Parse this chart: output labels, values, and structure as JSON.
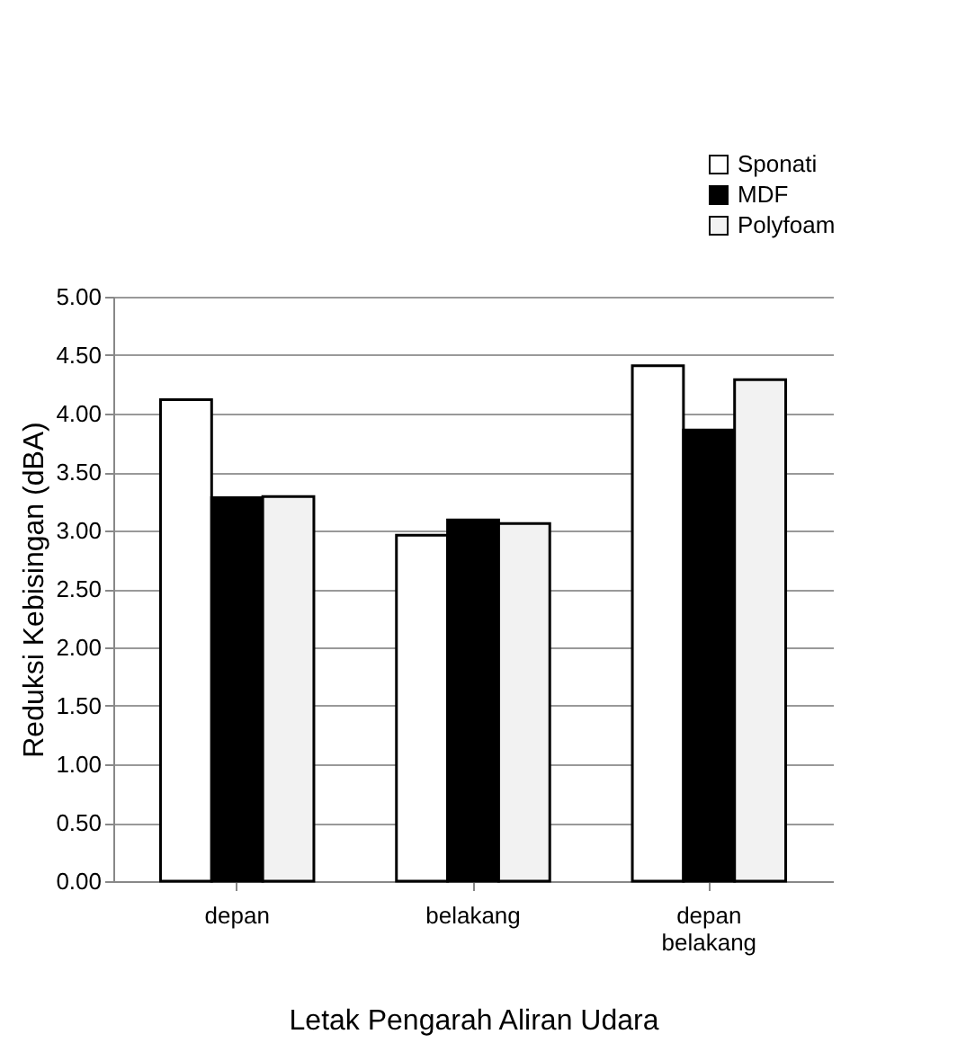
{
  "chart_data": {
    "type": "bar",
    "xlabel": "Letak Pengarah Aliran Udara",
    "ylabel": "Reduksi Kebisingan (dBA)",
    "categories": [
      "depan",
      "belakang",
      "depan belakang"
    ],
    "series": [
      {
        "name": "Sponati",
        "color": "#ffffff",
        "values": [
          4.12,
          2.96,
          4.41
        ]
      },
      {
        "name": "MDF",
        "color": "#000000",
        "values": [
          3.28,
          3.09,
          3.86
        ]
      },
      {
        "name": "Polyfoam",
        "color": "#f2f2f2",
        "values": [
          3.29,
          3.06,
          4.29
        ]
      }
    ],
    "ylim": [
      0,
      5
    ],
    "yticks": [
      {
        "value": 0,
        "label": "0.00"
      },
      {
        "value": 0.5,
        "label": "0.50"
      },
      {
        "value": 1,
        "label": "1.00"
      },
      {
        "value": 1.5,
        "label": "1.50"
      },
      {
        "value": 2,
        "label": "2.00"
      },
      {
        "value": 2.5,
        "label": "2.50"
      },
      {
        "value": 3,
        "label": "3.00"
      },
      {
        "value": 3.5,
        "label": "3.50"
      },
      {
        "value": 4,
        "label": "4.00"
      },
      {
        "value": 4.5,
        "label": "4.50"
      },
      {
        "value": 5,
        "label": "5.00"
      }
    ],
    "grid": "y",
    "legend": "top right"
  }
}
